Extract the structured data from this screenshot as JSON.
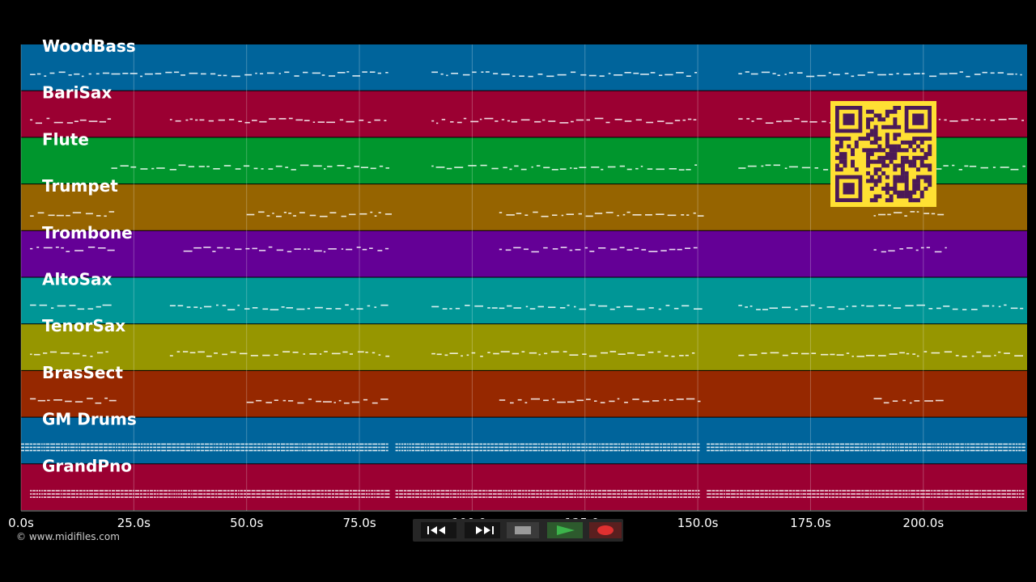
{
  "lanes": [
    {
      "label": "WoodBass",
      "color": "#00649b"
    },
    {
      "label": "BariSax",
      "color": "#9b0032"
    },
    {
      "label": "Flute",
      "color": "#00962d"
    },
    {
      "label": "Trumpet",
      "color": "#966400"
    },
    {
      "label": "Trombone",
      "color": "#640096"
    },
    {
      "label": "AltoSax",
      "color": "#009696"
    },
    {
      "label": "TenorSax",
      "color": "#969600"
    },
    {
      "label": "BrasSect",
      "color": "#962800"
    },
    {
      "label": "GM Drums",
      "color": "#00649b"
    },
    {
      "label": "GrandPno",
      "color": "#9b0032"
    }
  ],
  "timeline": {
    "ticks": [
      "0.0s",
      "25.0s",
      "50.0s",
      "75.0s",
      "100.0s",
      "125.0s",
      "150.0s",
      "175.0s",
      "200.0s"
    ],
    "tick_values": [
      0,
      25,
      50,
      75,
      100,
      125,
      150,
      175,
      200
    ],
    "range": [
      0,
      223
    ],
    "unit": "s"
  },
  "copyright": "© www.midifiles.com",
  "transport": {
    "buttons": [
      {
        "name": "rewind-button",
        "icon": "rewind-icon",
        "color": "#ffffff"
      },
      {
        "name": "fast-forward-button",
        "icon": "fast-forward-icon",
        "color": "#ffffff"
      },
      {
        "name": "stop-button",
        "icon": "stop-icon",
        "color": "#9a9a9a"
      },
      {
        "name": "play-button",
        "icon": "play-icon",
        "color": "#3cb44b"
      },
      {
        "name": "record-button",
        "icon": "record-icon",
        "color": "#e03030"
      }
    ]
  },
  "qr_code": {
    "icon": "qr-code-icon",
    "fg": "#4b1a57",
    "bg": "#ffe033"
  }
}
